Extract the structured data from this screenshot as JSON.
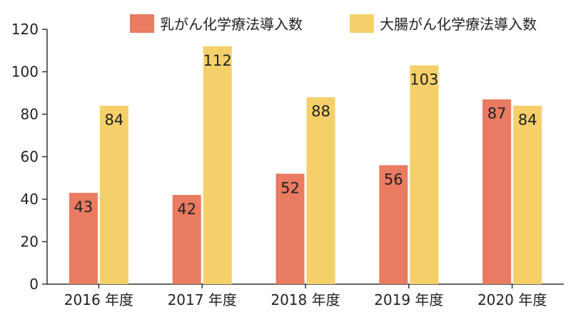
{
  "chart_data": {
    "type": "bar",
    "categories": [
      "2016 年度",
      "2017 年度",
      "2018 年度",
      "2019 年度",
      "2020 年度"
    ],
    "series": [
      {
        "name": "乳がん化学療法導入数",
        "values": [
          43,
          42,
          52,
          56,
          87
        ],
        "color": "#E87B60"
      },
      {
        "name": "大腸がん化学療法導入数",
        "values": [
          84,
          112,
          88,
          103,
          84
        ],
        "color": "#F5D06A"
      }
    ],
    "yticks": [
      0,
      20,
      40,
      60,
      80,
      100,
      120
    ],
    "ylim": [
      0,
      120
    ],
    "grid": false,
    "legend_position": "top-right",
    "data_labels": true
  }
}
